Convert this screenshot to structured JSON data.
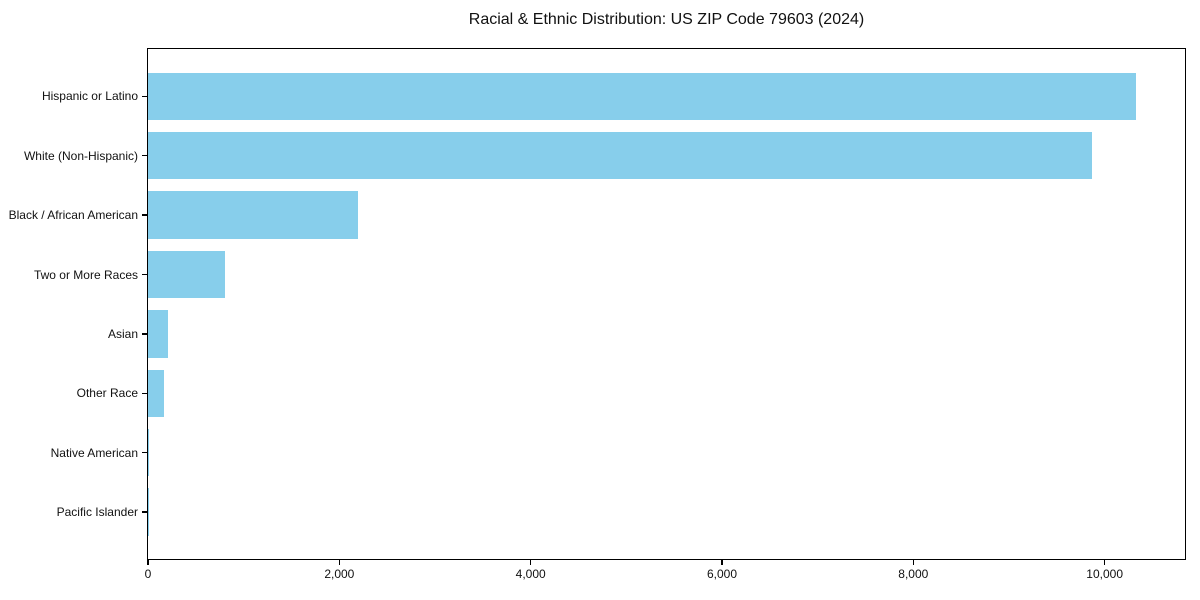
{
  "chart_data": {
    "type": "bar",
    "orientation": "horizontal",
    "title": "Racial & Ethnic Distribution: US ZIP Code 79603 (2024)",
    "categories": [
      "Hispanic or Latino",
      "White (Non-Hispanic)",
      "Black / African American",
      "Two or More Races",
      "Asian",
      "Other Race",
      "Native American",
      "Pacific Islander"
    ],
    "values": [
      10330,
      9870,
      2195,
      805,
      210,
      168,
      10,
      5
    ],
    "xlabel": "",
    "ylabel": "",
    "xlim": [
      0,
      10840
    ],
    "x_ticks": [
      0,
      2000,
      4000,
      6000,
      8000,
      10000
    ],
    "x_tick_labels": [
      "0",
      "2,000",
      "4,000",
      "6,000",
      "8,000",
      "10,000"
    ],
    "bar_color": "#87CEEB",
    "frame_color": "#000000",
    "background_color": "#ffffff",
    "grid": false,
    "legend": false
  }
}
